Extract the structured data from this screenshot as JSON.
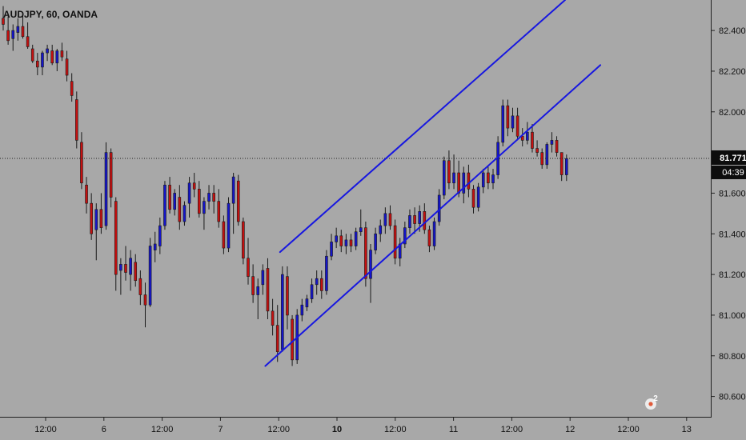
{
  "header": {
    "symbol_label": "AUDJPY, 60, OANDA"
  },
  "price_axis": {
    "ticks": [
      "82.400",
      "82.200",
      "82.000",
      "81.600",
      "81.400",
      "81.200",
      "81.000",
      "80.800",
      "80.600"
    ],
    "current_price_label": "81.771",
    "countdown_label": "04:39"
  },
  "time_axis": {
    "labels": [
      "12:00",
      "6",
      "12:00",
      "7",
      "12:00",
      "10",
      "12:00",
      "11",
      "12:00",
      "12",
      "12:00",
      "13"
    ],
    "bold": [
      false,
      false,
      false,
      false,
      false,
      true,
      false,
      false,
      false,
      false,
      false,
      false
    ]
  },
  "badge": {
    "count": "2"
  },
  "colors": {
    "background": "#a8a8a8",
    "bull": "#1515c8",
    "bear": "#c41010",
    "channel": "#1717e0",
    "tag_bg": "#0d0d0d",
    "tag_fg": "#ffffff"
  },
  "chart_data": {
    "type": "candlestick",
    "title": "AUDJPY, 60, OANDA",
    "ylim": [
      80.5,
      82.55
    ],
    "current_price": 81.771,
    "x_labels": [
      "12:00",
      "6",
      "12:00",
      "7",
      "12:00",
      "10",
      "12:00",
      "11",
      "12:00",
      "12",
      "12:00",
      "13"
    ],
    "candles": [
      [
        82.46,
        82.52,
        82.4,
        82.43
      ],
      [
        82.4,
        82.47,
        82.33,
        82.35
      ],
      [
        82.36,
        82.43,
        82.3,
        82.4
      ],
      [
        82.39,
        82.46,
        82.35,
        82.42
      ],
      [
        82.42,
        82.48,
        82.36,
        82.37
      ],
      [
        82.37,
        82.44,
        82.31,
        82.32
      ],
      [
        82.31,
        82.33,
        82.24,
        82.25
      ],
      [
        82.25,
        82.29,
        82.18,
        82.22
      ],
      [
        82.22,
        82.3,
        82.18,
        82.29
      ],
      [
        82.29,
        82.33,
        82.25,
        82.31
      ],
      [
        82.3,
        82.33,
        82.23,
        82.24
      ],
      [
        82.24,
        82.31,
        82.2,
        82.3
      ],
      [
        82.3,
        82.34,
        82.25,
        82.27
      ],
      [
        82.26,
        82.3,
        82.15,
        82.18
      ],
      [
        82.15,
        82.19,
        82.05,
        82.08
      ],
      [
        82.06,
        82.1,
        81.82,
        81.86
      ],
      [
        81.85,
        81.9,
        81.62,
        81.65
      ],
      [
        81.64,
        81.68,
        81.5,
        81.55
      ],
      [
        81.55,
        81.6,
        81.37,
        81.4
      ],
      [
        81.42,
        81.55,
        81.27,
        81.52
      ],
      [
        81.52,
        81.6,
        81.4,
        81.43
      ],
      [
        81.44,
        81.85,
        81.42,
        81.8
      ],
      [
        81.8,
        81.82,
        81.53,
        81.58
      ],
      [
        81.56,
        81.58,
        81.12,
        81.2
      ],
      [
        81.22,
        81.28,
        81.1,
        81.25
      ],
      [
        81.25,
        81.34,
        81.17,
        81.21
      ],
      [
        81.2,
        81.32,
        81.12,
        81.28
      ],
      [
        81.26,
        81.3,
        81.14,
        81.17
      ],
      [
        81.18,
        81.22,
        81.05,
        81.1
      ],
      [
        81.1,
        81.16,
        80.94,
        81.05
      ],
      [
        81.05,
        81.38,
        81.04,
        81.34
      ],
      [
        81.32,
        81.41,
        81.26,
        81.35
      ],
      [
        81.34,
        81.48,
        81.3,
        81.44
      ],
      [
        81.44,
        81.66,
        81.42,
        81.64
      ],
      [
        81.64,
        81.68,
        81.5,
        81.52
      ],
      [
        81.52,
        81.62,
        81.49,
        81.6
      ],
      [
        81.58,
        81.64,
        81.42,
        81.46
      ],
      [
        81.46,
        81.56,
        81.44,
        81.54
      ],
      [
        81.55,
        81.68,
        81.48,
        81.65
      ],
      [
        81.65,
        81.7,
        81.58,
        81.62
      ],
      [
        81.62,
        81.66,
        81.48,
        81.5
      ],
      [
        81.5,
        81.58,
        81.42,
        81.56
      ],
      [
        81.56,
        81.64,
        81.52,
        81.6
      ],
      [
        81.6,
        81.64,
        81.5,
        81.56
      ],
      [
        81.56,
        81.62,
        81.43,
        81.46
      ],
      [
        81.46,
        81.49,
        81.3,
        81.33
      ],
      [
        81.33,
        81.58,
        81.31,
        81.55
      ],
      [
        81.55,
        81.7,
        81.4,
        81.68
      ],
      [
        81.66,
        81.69,
        81.44,
        81.46
      ],
      [
        81.46,
        81.48,
        81.25,
        81.28
      ],
      [
        81.28,
        81.38,
        81.15,
        81.19
      ],
      [
        81.19,
        81.25,
        81.06,
        81.1
      ],
      [
        81.1,
        81.18,
        80.98,
        81.14
      ],
      [
        81.15,
        81.25,
        81.1,
        81.22
      ],
      [
        81.23,
        81.28,
        80.98,
        81.02
      ],
      [
        81.02,
        81.08,
        80.9,
        80.95
      ],
      [
        80.95,
        81.05,
        80.77,
        80.82
      ],
      [
        80.83,
        81.24,
        80.82,
        81.2
      ],
      [
        81.19,
        81.24,
        80.93,
        81.0
      ],
      [
        80.98,
        81.0,
        80.75,
        80.78
      ],
      [
        80.78,
        81.03,
        80.76,
        81.0
      ],
      [
        81.0,
        81.08,
        80.97,
        81.05
      ],
      [
        81.04,
        81.1,
        81.02,
        81.08
      ],
      [
        81.08,
        81.18,
        81.06,
        81.15
      ],
      [
        81.15,
        81.22,
        81.1,
        81.18
      ],
      [
        81.18,
        81.22,
        81.08,
        81.12
      ],
      [
        81.12,
        81.32,
        81.1,
        81.29
      ],
      [
        81.29,
        81.4,
        81.27,
        81.36
      ],
      [
        81.36,
        81.43,
        81.33,
        81.39
      ],
      [
        81.39,
        81.42,
        81.31,
        81.34
      ],
      [
        81.34,
        81.4,
        81.3,
        81.37
      ],
      [
        81.37,
        81.4,
        81.31,
        81.34
      ],
      [
        81.34,
        81.43,
        81.32,
        81.41
      ],
      [
        81.41,
        81.52,
        81.39,
        81.43
      ],
      [
        81.43,
        81.46,
        81.14,
        81.18
      ],
      [
        81.18,
        81.35,
        81.06,
        81.32
      ],
      [
        81.32,
        81.43,
        81.3,
        81.4
      ],
      [
        81.4,
        81.47,
        81.36,
        81.44
      ],
      [
        81.44,
        81.53,
        81.4,
        81.5
      ],
      [
        81.5,
        81.54,
        81.42,
        81.44
      ],
      [
        81.44,
        81.47,
        81.25,
        81.28
      ],
      [
        81.28,
        81.38,
        81.24,
        81.35
      ],
      [
        81.35,
        81.46,
        81.33,
        81.43
      ],
      [
        81.43,
        81.52,
        81.4,
        81.49
      ],
      [
        81.49,
        81.53,
        81.4,
        81.45
      ],
      [
        81.45,
        81.54,
        81.41,
        81.51
      ],
      [
        81.51,
        81.55,
        81.4,
        81.42
      ],
      [
        81.42,
        81.44,
        81.31,
        81.34
      ],
      [
        81.34,
        81.48,
        81.32,
        81.46
      ],
      [
        81.46,
        81.62,
        81.44,
        81.59
      ],
      [
        81.59,
        81.78,
        81.57,
        81.76
      ],
      [
        81.76,
        81.81,
        81.62,
        81.65
      ],
      [
        81.65,
        81.79,
        81.62,
        81.7
      ],
      [
        81.7,
        81.76,
        81.58,
        81.6
      ],
      [
        81.6,
        81.73,
        81.55,
        81.7
      ],
      [
        81.7,
        81.74,
        81.58,
        81.62
      ],
      [
        81.62,
        81.64,
        81.5,
        81.53
      ],
      [
        81.53,
        81.65,
        81.51,
        81.63
      ],
      [
        81.63,
        81.72,
        81.6,
        81.7
      ],
      [
        81.7,
        81.73,
        81.62,
        81.65
      ],
      [
        81.65,
        81.72,
        81.62,
        81.69
      ],
      [
        81.69,
        81.88,
        81.67,
        81.85
      ],
      [
        81.85,
        82.06,
        81.83,
        82.03
      ],
      [
        82.03,
        82.06,
        81.88,
        81.92
      ],
      [
        81.92,
        82.02,
        81.9,
        81.98
      ],
      [
        81.98,
        82.02,
        81.86,
        81.88
      ],
      [
        81.88,
        81.92,
        81.83,
        81.86
      ],
      [
        81.86,
        81.95,
        81.84,
        81.9
      ],
      [
        81.9,
        81.94,
        81.8,
        81.82
      ],
      [
        81.82,
        81.86,
        81.78,
        81.8
      ],
      [
        81.8,
        81.82,
        81.72,
        81.74
      ],
      [
        81.74,
        81.85,
        81.72,
        81.84
      ],
      [
        81.84,
        81.9,
        81.8,
        81.86
      ],
      [
        81.86,
        81.88,
        81.78,
        81.8
      ],
      [
        81.8,
        81.8,
        81.66,
        81.69
      ],
      [
        81.69,
        81.79,
        81.66,
        81.77
      ]
    ],
    "channel_lines": [
      {
        "name": "upper",
        "from": [
          56.5,
          81.31
        ],
        "to": [
          114.7,
          82.55
        ]
      },
      {
        "name": "lower",
        "from": [
          53.5,
          80.75
        ],
        "to": [
          121.9,
          82.23
        ]
      }
    ]
  }
}
